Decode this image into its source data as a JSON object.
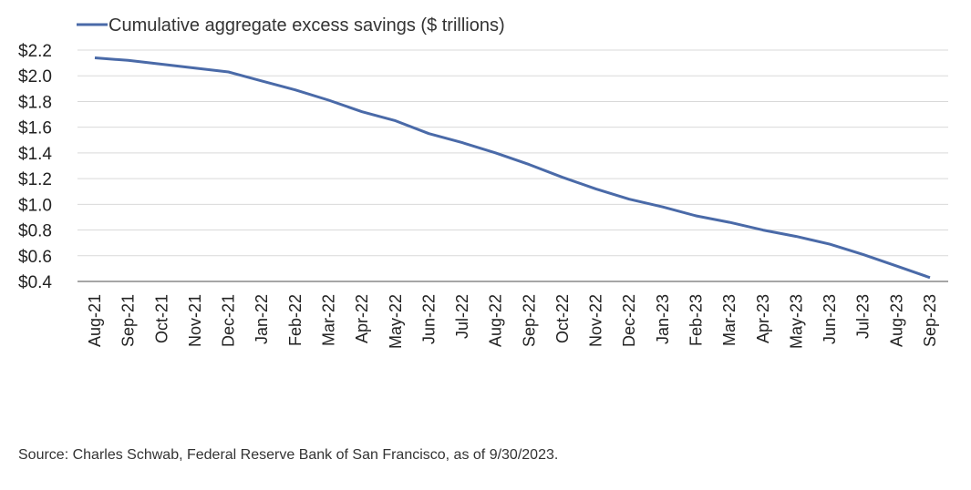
{
  "chart_data": {
    "type": "line",
    "title": "",
    "xlabel": "",
    "ylabel": "",
    "ylim": [
      0.4,
      2.2
    ],
    "yticks": [
      "$2.2",
      "$2.0",
      "$1.8",
      "$1.6",
      "$1.4",
      "$1.2",
      "$1.0",
      "$0.8",
      "$0.6",
      "$0.4"
    ],
    "grid": true,
    "legend": "top-left",
    "categories": [
      "Aug-21",
      "Sep-21",
      "Oct-21",
      "Nov-21",
      "Dec-21",
      "Jan-22",
      "Feb-22",
      "Mar-22",
      "Apr-22",
      "May-22",
      "Jun-22",
      "Jul-22",
      "Aug-22",
      "Sep-22",
      "Oct-22",
      "Nov-22",
      "Dec-22",
      "Jan-23",
      "Feb-23",
      "Mar-23",
      "Apr-23",
      "May-23",
      "Jun-23",
      "Jul-23",
      "Aug-23",
      "Sep-23"
    ],
    "series": [
      {
        "name": "Cumulative aggregate excess savings ($ trillions)",
        "color": "#4a6aa8",
        "values": [
          2.14,
          2.12,
          2.09,
          2.06,
          2.03,
          1.96,
          1.89,
          1.81,
          1.72,
          1.65,
          1.55,
          1.48,
          1.4,
          1.31,
          1.21,
          1.12,
          1.04,
          0.98,
          0.91,
          0.86,
          0.8,
          0.75,
          0.69,
          0.61,
          0.52,
          0.43
        ]
      }
    ]
  },
  "source": "Source: Charles Schwab, Federal Reserve Bank of San Francisco, as of 9/30/2023."
}
